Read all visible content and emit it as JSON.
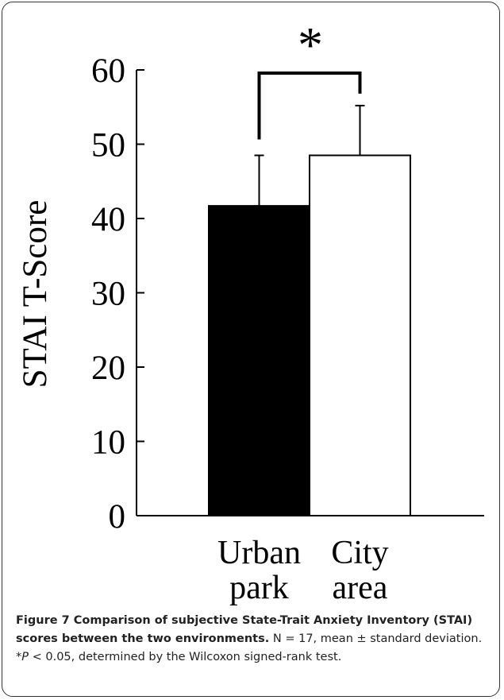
{
  "chart_data": {
    "type": "bar",
    "categories": [
      "Urban park",
      "City area"
    ],
    "values": [
      41.7,
      48.5
    ],
    "errors": [
      6.8,
      6.7
    ],
    "colors": [
      "#000000",
      "#ffffff"
    ],
    "ylabel": "STAI T-Score",
    "ylim": [
      0,
      60
    ],
    "yticks": [
      0,
      10,
      20,
      30,
      40,
      50,
      60
    ],
    "annotation": "*"
  },
  "caption": {
    "title": "Figure 7 Comparison of subjective State-Trait Anxiety Inventory (STAI) scores between the two environments.",
    "text_before": "N = 17, mean ± standard deviation. *",
    "italic": "P",
    "text_after": " < 0.05, determined by the Wilcoxon signed-rank test."
  }
}
